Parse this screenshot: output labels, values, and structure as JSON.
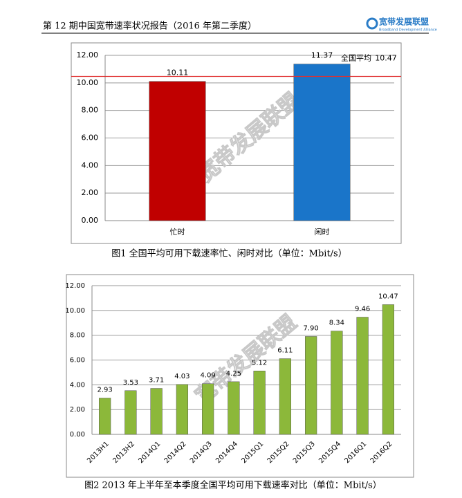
{
  "header": {
    "title": "第 12 期中国宽带速率状况报告（2016 年第二季度）",
    "logo": "宽带发展联盟",
    "logo_subtitle": "Broadband Development Alliance"
  },
  "watermark": "宽带发展联盟",
  "chart_data": [
    {
      "type": "bar",
      "caption": "图1 全国平均可用下载速率忙、闲时对比（单位：Mbit/s）",
      "categories": [
        "忙时",
        "闲时"
      ],
      "values": [
        10.11,
        11.37
      ],
      "value_labels": [
        "10.11",
        "11.37"
      ],
      "colors": [
        "#c00000",
        "#1a75c9"
      ],
      "reference": {
        "label": "全国平均",
        "value": 10.47,
        "value_label": "10.47",
        "color": "#e03030"
      },
      "ylim": [
        0,
        12
      ],
      "yticks": [
        {
          "value": 0,
          "label": "0.00"
        },
        {
          "value": 2,
          "label": "2.00"
        },
        {
          "value": 4,
          "label": "4.00"
        },
        {
          "value": 6,
          "label": "6.00"
        },
        {
          "value": 8,
          "label": "8.00"
        },
        {
          "value": 10,
          "label": "10.00"
        },
        {
          "value": 12,
          "label": "12.00"
        }
      ],
      "grid": true
    },
    {
      "type": "bar",
      "caption": "图2 2013 年上半年至本季度全国平均可用下载速率对比（单位：Mbit/s）",
      "categories": [
        "2013H1",
        "2013H2",
        "2014Q1",
        "2014Q2",
        "2014Q3",
        "2014Q4",
        "2015Q1",
        "2015Q2",
        "2015Q3",
        "2015Q4",
        "2016Q1",
        "2016Q2"
      ],
      "values": [
        2.93,
        3.53,
        3.71,
        4.03,
        4.09,
        4.25,
        5.12,
        6.11,
        7.9,
        8.34,
        9.46,
        10.47
      ],
      "value_labels": [
        "2.93",
        "3.53",
        "3.71",
        "4.03",
        "4.09",
        "4.25",
        "5.12",
        "6.11",
        "7.90",
        "8.34",
        "9.46",
        "10.47"
      ],
      "color": "#8cb83a",
      "ylim": [
        0,
        12
      ],
      "yticks": [
        {
          "value": 0,
          "label": "0.00"
        },
        {
          "value": 2,
          "label": "2.00"
        },
        {
          "value": 4,
          "label": "4.00"
        },
        {
          "value": 6,
          "label": "6.00"
        },
        {
          "value": 8,
          "label": "8.00"
        },
        {
          "value": 10,
          "label": "10.00"
        },
        {
          "value": 12,
          "label": "12.00"
        }
      ],
      "grid": true
    }
  ]
}
